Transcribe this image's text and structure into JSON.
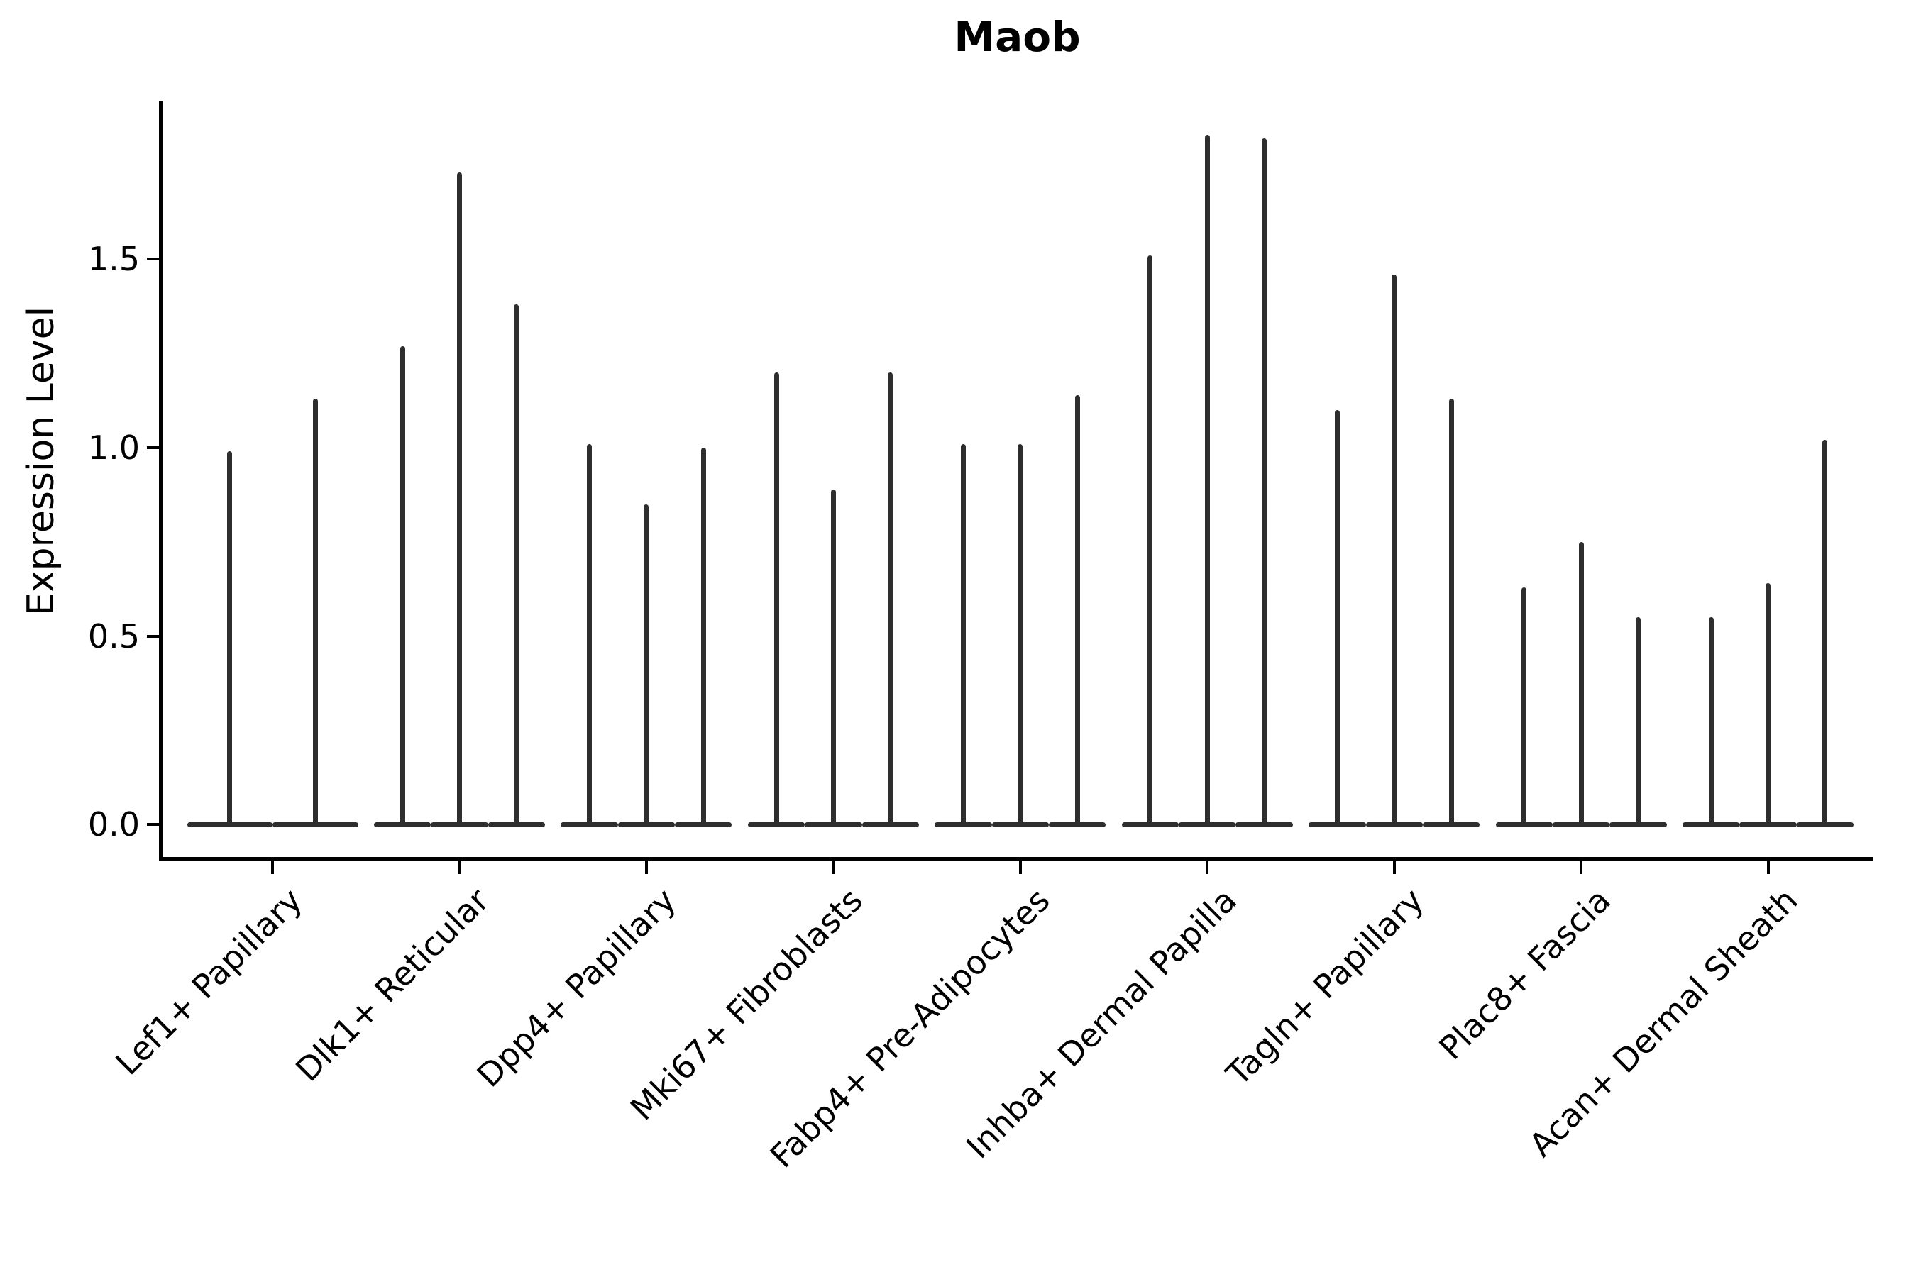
{
  "title": "Maob",
  "chart_data": {
    "type": "violin",
    "title": "Maob",
    "ylabel": "Expression Level",
    "xlabel": "",
    "ytick_labels": [
      "0.0",
      "0.5",
      "1.0",
      "1.5"
    ],
    "ytick_values": [
      0.0,
      0.5,
      1.0,
      1.5
    ],
    "ylim": [
      -0.09,
      1.92
    ],
    "grid": false,
    "legend": "none",
    "x_label_rotation_deg": 45,
    "categories": [
      "Lef1+ Papillary",
      "Dlk1+ Reticular",
      "Dpp4+ Papillary",
      "Mki67+ Fibroblasts",
      "Fabp4+ Pre-Adipocytes",
      "Inhba+ Dermal Papilla",
      "Tagln+ Papillary",
      "Plac8+ Fascia",
      "Acan+ Dermal Sheath"
    ],
    "groups": [
      {
        "category": "Lef1+ Papillary",
        "violin_max": [
          0.99,
          1.13
        ]
      },
      {
        "category": "Dlk1+ Reticular",
        "violin_max": [
          1.27,
          1.73,
          1.38
        ]
      },
      {
        "category": "Dpp4+ Papillary",
        "violin_max": [
          1.01,
          0.85,
          1.0
        ]
      },
      {
        "category": "Mki67+ Fibroblasts",
        "violin_max": [
          1.2,
          0.89,
          1.2
        ]
      },
      {
        "category": "Fabp4+ Pre-Adipocytes",
        "violin_max": [
          1.01,
          1.01,
          1.14
        ]
      },
      {
        "category": "Inhba+ Dermal Papilla",
        "violin_max": [
          1.51,
          1.83,
          1.82
        ]
      },
      {
        "category": "Tagln+ Papillary",
        "violin_max": [
          1.1,
          1.46,
          1.13
        ]
      },
      {
        "category": "Plac8+ Fascia",
        "violin_max": [
          0.63,
          0.75,
          0.55
        ]
      },
      {
        "category": "Acan+ Dermal Sheath",
        "violin_max": [
          0.55,
          0.64,
          1.02
        ]
      }
    ],
    "colors": {
      "violin": "#2e2e2e",
      "axis": "#000000",
      "text": "#000000",
      "background": "#ffffff"
    }
  }
}
